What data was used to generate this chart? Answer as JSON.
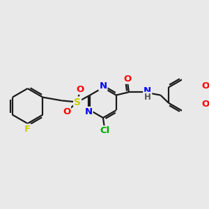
{
  "background_color": "#e9e9e9",
  "bond_color": "#1a1a1a",
  "bond_width": 1.6,
  "atoms": {
    "F": {
      "color": "#cccc00"
    },
    "N": {
      "color": "#0000ff"
    },
    "O": {
      "color": "#ff0000"
    },
    "S": {
      "color": "#cccc00"
    },
    "Cl": {
      "color": "#00aa00"
    },
    "H": {
      "color": "#555555"
    }
  },
  "figsize": [
    3.0,
    3.0
  ],
  "dpi": 100
}
